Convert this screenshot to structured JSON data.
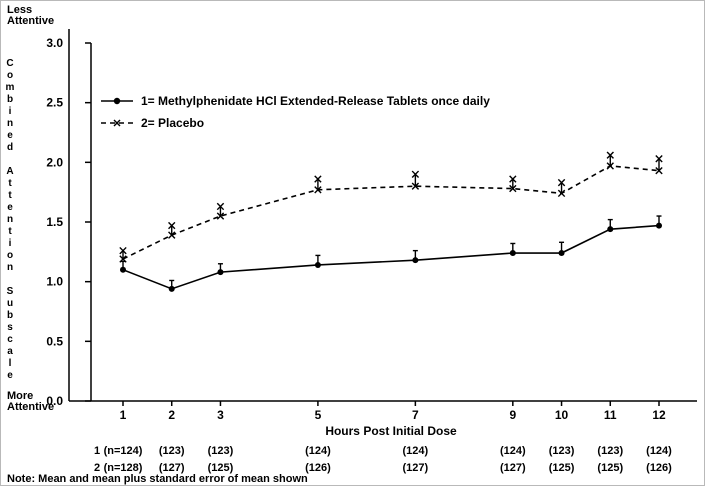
{
  "figure": {
    "top_left_label": {
      "line1": "Less",
      "line2": "Attentive"
    },
    "bottom_left_label": {
      "line1": "More",
      "line2": "Attentive"
    },
    "note": "Note: Mean and mean plus standard error of mean shown"
  },
  "chart_data": {
    "type": "line",
    "title": "",
    "xlabel": "Hours Post Initial Dose",
    "ylabel": "Combined Attention Subscale",
    "x": [
      1,
      2,
      3,
      5,
      7,
      9,
      10,
      11,
      12
    ],
    "xtick_labels": [
      "1",
      "2",
      "3",
      "5",
      "7",
      "9",
      "10",
      "11",
      "12"
    ],
    "ylim": [
      0.0,
      3.0
    ],
    "yticks": [
      0.0,
      0.5,
      1.0,
      1.5,
      2.0,
      2.5,
      3.0
    ],
    "ytick_labels": [
      "0.0",
      "0.5",
      "1.0",
      "1.5",
      "2.0",
      "2.5",
      "3.0"
    ],
    "grid": false,
    "legend_position": "upper-left-inside",
    "series": [
      {
        "name": "1",
        "legend_label": "1= Methylphenidate HCl Extended-Release Tablets once daily",
        "line_style": "solid",
        "marker": "filled-circle",
        "mean": [
          1.1,
          0.94,
          1.08,
          1.14,
          1.18,
          1.24,
          1.24,
          1.44,
          1.47
        ],
        "mean_plus_se": [
          1.17,
          1.01,
          1.15,
          1.22,
          1.26,
          1.32,
          1.33,
          1.52,
          1.55
        ]
      },
      {
        "name": "2",
        "legend_label": "2= Placebo",
        "line_style": "dashed",
        "marker": "x",
        "mean": [
          1.19,
          1.39,
          1.55,
          1.77,
          1.8,
          1.78,
          1.74,
          1.97,
          1.93
        ],
        "mean_plus_se": [
          1.26,
          1.47,
          1.63,
          1.86,
          1.9,
          1.86,
          1.83,
          2.06,
          2.03
        ]
      }
    ],
    "sample_sizes": {
      "rows": [
        {
          "label": "1",
          "values": [
            "(n=124)",
            "(123)",
            "(123)",
            "(124)",
            "(124)",
            "(124)",
            "(123)",
            "(123)",
            "(124)"
          ]
        },
        {
          "label": "2",
          "values": [
            "(n=128)",
            "(127)",
            "(125)",
            "(126)",
            "(127)",
            "(127)",
            "(125)",
            "(125)",
            "(126)"
          ]
        }
      ]
    }
  }
}
